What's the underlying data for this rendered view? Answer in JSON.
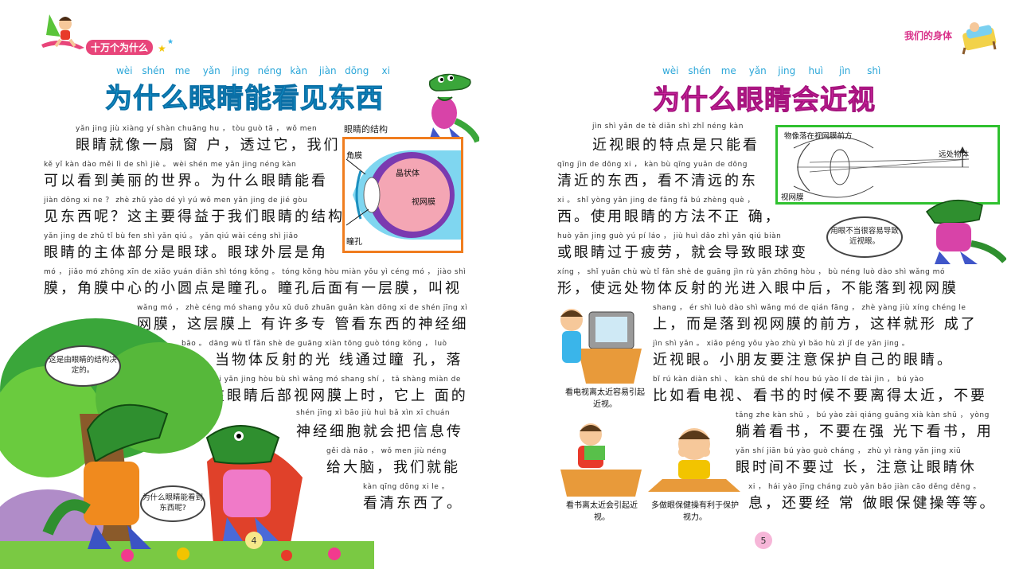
{
  "left_page": {
    "series_title": "十万个为什么",
    "title_pinyin": [
      "wèi",
      "shén",
      "me",
      "yǎn",
      "jing",
      "néng",
      "kàn",
      "jiàn",
      "dōng",
      "xi"
    ],
    "title": "为什么眼睛能看见东西",
    "lines": [
      {
        "py": "yǎn jing jiù xiàng yí shàn chuāng hu ， tòu guò tā ， wǒ men",
        "hz": "眼睛就像一扇 窗 户，透过它，我们"
      },
      {
        "py": "kě yǐ kàn dào měi lì de shì jiè 。 wèi shén me yǎn jing néng kàn",
        "hz": "可以看到美丽的世界。为什么眼睛能看"
      },
      {
        "py": "jiàn dōng xi ne ？ zhè zhǔ yào dé yì yú wǒ men yǎn jing de jié gòu",
        "hz": "见东西呢？这主要得益于我们眼睛的结构。"
      },
      {
        "py": "yǎn jing de zhǔ tǐ bù fen shì yǎn qiú 。 yǎn qiú wài céng shì jiǎo",
        "hz": "眼睛的主体部分是眼球。眼球外层是角"
      },
      {
        "py": "mó ， jiǎo mó zhōng xīn de xiǎo yuán diǎn shì tóng kǒng 。 tóng kǒng hòu miàn yǒu yì céng mó ， jiào shì",
        "hz": "膜，角膜中心的小圆点是瞳孔。瞳孔后面有一层膜，叫视"
      },
      {
        "py": "wǎng mó ， zhè céng mó shang yǒu xǔ duō zhuān guǎn kàn dōng xi de shén jīng xì",
        "hz": "网膜，这层膜上 有许多专 管看东西的神经细"
      },
      {
        "py": "bāo 。 dāng wù tǐ fǎn shè de guāng xiàn tōng guò tóng kǒng ， luò",
        "hz": "胞。当物体反射的光 线通过瞳 孔，落"
      },
      {
        "py": "zài yǎn jing hòu bù shì wǎng mó shang shí ， tā shàng miàn de",
        "hz": "在眼睛后部视网膜上时，它上 面的"
      },
      {
        "py": "shén jīng xì bāo jiù huì bǎ xìn xī chuán",
        "hz": "神经细胞就会把信息传"
      },
      {
        "py": "gěi dà nǎo ， wǒ men jiù néng",
        "hz": "给大脑，我们就能"
      },
      {
        "py": "kàn qīng dōng xi le 。",
        "hz": "看清东西了。"
      }
    ],
    "diagram": {
      "caption": "眼睛的结构",
      "labels": {
        "cornea": "角膜",
        "lens": "晶状体",
        "retina": "视网膜",
        "pupil": "瞳孔"
      }
    },
    "bubble_1": "这是由眼睛的结构决定的。",
    "bubble_2": "为什么眼睛能看到东西呢?",
    "page_number": "4"
  },
  "right_page": {
    "section_title": "我们的身体",
    "title_pinyin": [
      "wèi",
      "shén",
      "me",
      "yǎn",
      "jing",
      "huì",
      "jìn",
      "shì"
    ],
    "title": "为什么眼睛会近视",
    "lines": [
      {
        "py": "jìn shì yǎn de tè diǎn shì zhǐ néng kàn",
        "hz": "近视眼的特点是只能看"
      },
      {
        "py": "qīng jìn de dōng xi ， kàn bù qīng yuǎn de dōng",
        "hz": "清近的东西，看不清远的东"
      },
      {
        "py": "xi 。 shǐ yòng yǎn jing de fāng fǎ bú zhèng què ，",
        "hz": "西。使用眼睛的方法不正 确，"
      },
      {
        "py": "huò yǎn jing guò yú pí láo ， jiù huì dǎo zhì yǎn qiú biàn",
        "hz": "或眼睛过于疲劳，就会导致眼球变"
      },
      {
        "py": "xíng ， shǐ yuǎn chù wù tǐ fǎn shè de guāng jìn rù yǎn zhōng hòu ， bù néng luò dào shì wǎng mó",
        "hz": "形，使远处物体反射的光进入眼中后，不能落到视网膜"
      },
      {
        "py": "shang ， ér shì luò dào shì wǎng mó de qián fāng ， zhè yàng jiù xíng chéng le",
        "hz": "上，而是落到视网膜的前方，这样就形 成了"
      },
      {
        "py": "jìn shì yǎn 。 xiǎo péng yǒu yào zhù yì bǎo hù zì jǐ de yǎn jing 。",
        "hz": "近视眼。小朋友要注意保护自己的眼睛。"
      },
      {
        "py": "bǐ rú kàn diàn shì 、 kàn shū de shí hou bú yào lí de tài jìn ， bú yào",
        "hz": "比如看电视、看书的时候不要离得太近，不要"
      },
      {
        "py": "tǎng zhe kàn shū ， bú yào zài qiáng guāng xià kàn shū ， yòng",
        "hz": "躺着看书，不要在强 光下看书，用"
      },
      {
        "py": "yǎn shí jiān bú yào guò cháng ， zhù yì ràng yǎn jing xiū",
        "hz": "眼时间不要过 长，注意让眼睛休"
      },
      {
        "py": "xi ， hái yào jīng cháng zuò yǎn bǎo jiàn cāo děng děng 。",
        "hz": "息，还要经 常 做眼保健操等等。"
      }
    ],
    "diagram": {
      "caption": "物像落在视网膜前方",
      "far_object": "远处物体",
      "retina": "视网膜"
    },
    "bubble": "用眼不当很容易导致近视眼。",
    "caption_tv": "看电视离太近容易引起近视。",
    "caption_book": "看书离太近会引起近视。",
    "caption_exercise": "多做眼保健操有利于保护视力。",
    "page_number": "5"
  },
  "colors": {
    "left_title": "#17a9e0",
    "right_title": "#e52fb5",
    "eye_box_border": "#f07d1f",
    "myopia_box_border": "#2fc12f"
  }
}
